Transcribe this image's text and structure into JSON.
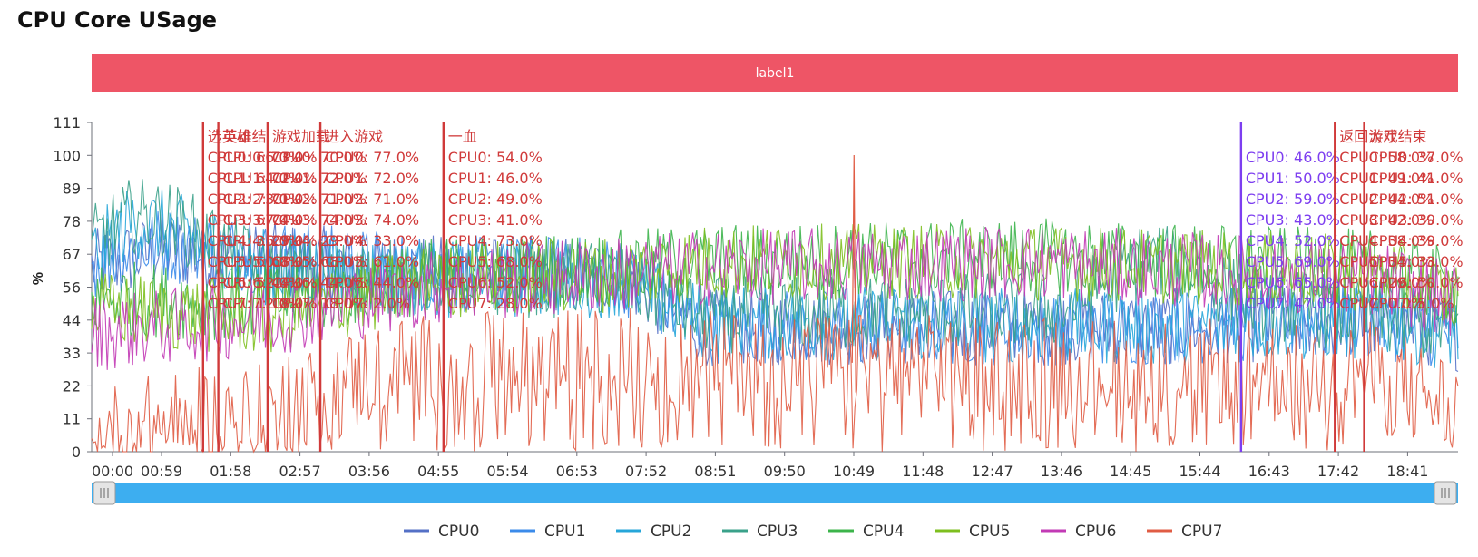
{
  "page": {
    "title": "CPU Core USage"
  },
  "banner": {
    "label": "label1",
    "color": "#ee5566"
  },
  "chart_data": {
    "type": "line",
    "title": "CPU Core USage",
    "ylabel": "%",
    "xlabel": "",
    "ylim": [
      0,
      111
    ],
    "yticks": [
      "0",
      "11",
      "22",
      "33",
      "44",
      "56",
      "67",
      "78",
      "89",
      "100",
      "111"
    ],
    "xticks": [
      "00:00",
      "00:59",
      "01:58",
      "02:57",
      "03:56",
      "04:55",
      "05:54",
      "06:53",
      "07:52",
      "08:51",
      "09:50",
      "10:49",
      "11:48",
      "12:47",
      "13:46",
      "14:45",
      "15:44",
      "16:43",
      "17:42",
      "18:41"
    ],
    "x_range_seconds": [
      0,
      1165
    ],
    "grid": false,
    "legend_position": "bottom",
    "series": [
      {
        "name": "CPU0",
        "color": "#5470c6",
        "profile": [
          [
            0,
            62
          ],
          [
            60,
            68
          ],
          [
            150,
            65
          ],
          [
            300,
            60
          ],
          [
            450,
            60
          ],
          [
            520,
            42
          ],
          [
            900,
            42
          ],
          [
            1100,
            44
          ],
          [
            1165,
            40
          ]
        ]
      },
      {
        "name": "CPU1",
        "color": "#3b8bea",
        "profile": [
          [
            0,
            64
          ],
          [
            60,
            70
          ],
          [
            150,
            66
          ],
          [
            300,
            60
          ],
          [
            450,
            60
          ],
          [
            520,
            42
          ],
          [
            900,
            42
          ],
          [
            1100,
            44
          ],
          [
            1165,
            40
          ]
        ]
      },
      {
        "name": "CPU2",
        "color": "#26a6d9",
        "profile": [
          [
            0,
            66
          ],
          [
            35,
            78
          ],
          [
            70,
            75
          ],
          [
            150,
            62
          ],
          [
            300,
            58
          ],
          [
            450,
            58
          ],
          [
            520,
            44
          ],
          [
            900,
            42
          ],
          [
            1100,
            44
          ],
          [
            1165,
            40
          ]
        ]
      },
      {
        "name": "CPU3",
        "color": "#3aa18a",
        "profile": [
          [
            0,
            70
          ],
          [
            35,
            80
          ],
          [
            70,
            78
          ],
          [
            150,
            60
          ],
          [
            300,
            58
          ],
          [
            450,
            58
          ],
          [
            520,
            46
          ],
          [
            830,
            48
          ],
          [
            900,
            66
          ],
          [
            1000,
            50
          ],
          [
            1165,
            42
          ]
        ]
      },
      {
        "name": "CPU4",
        "color": "#3cb44b",
        "profile": [
          [
            0,
            52
          ],
          [
            150,
            50
          ],
          [
            300,
            60
          ],
          [
            450,
            62
          ],
          [
            520,
            64
          ],
          [
            800,
            66
          ],
          [
            1100,
            62
          ],
          [
            1165,
            55
          ]
        ]
      },
      {
        "name": "CPU5",
        "color": "#7ebf1f",
        "profile": [
          [
            0,
            48
          ],
          [
            150,
            45
          ],
          [
            300,
            58
          ],
          [
            450,
            60
          ],
          [
            520,
            64
          ],
          [
            800,
            64
          ],
          [
            1100,
            60
          ],
          [
            1165,
            52
          ]
        ]
      },
      {
        "name": "CPU6",
        "color": "#c23ab5",
        "profile": [
          [
            0,
            40
          ],
          [
            150,
            45
          ],
          [
            300,
            56
          ],
          [
            450,
            60
          ],
          [
            520,
            62
          ],
          [
            800,
            64
          ],
          [
            1100,
            58
          ],
          [
            1165,
            50
          ]
        ]
      },
      {
        "name": "CPU7",
        "color": "#e05c44",
        "profile": [
          [
            0,
            4
          ],
          [
            70,
            10
          ],
          [
            150,
            12
          ],
          [
            250,
            28
          ],
          [
            400,
            30
          ],
          [
            450,
            32
          ],
          [
            520,
            30
          ],
          [
            800,
            28
          ],
          [
            1100,
            26
          ],
          [
            1165,
            14
          ]
        ]
      }
    ],
    "annotations": [
      {
        "x_sec": 95,
        "color": "#d03a3a",
        "title": "选英雄",
        "values": [
          "CPU0: 66.0%",
          "CPU1: 64.0%",
          "CPU2: 73.0%",
          "CPU3: 67.0%",
          "CPU4: 35.0%",
          "CPU5: 60.0%",
          "CPU6: 52.0%",
          "CPU7: 12.0%"
        ]
      },
      {
        "x_sec": 108,
        "color": "#d03a3a",
        "title": "英雄结",
        "values": [
          "CPU0: 73.0%",
          "CPU1: 72.0%",
          "CPU2: 71.0%",
          "CPU3: 74.0%",
          "CPU4: 29.0%",
          "CPU5: 68.0%",
          "CPU6: 44.0%",
          "CPU7: 18.0%"
        ]
      },
      {
        "x_sec": 150,
        "color": "#d03a3a",
        "title": "游戏加载",
        "values": [
          "CPU0: 70.0%",
          "CPU1: 72.0%",
          "CPU2: 71.0%",
          "CPU3: 74.0%",
          "CPU4: 29.0%",
          "CPU5: 68.0%",
          "CPU6: 44.0%",
          "CPU7: 18.0%"
        ]
      },
      {
        "x_sec": 195,
        "color": "#d03a3a",
        "title": "进入游戏",
        "values": [
          "CPU0: 77.0%",
          "CPU1: 72.0%",
          "CPU2: 71.0%",
          "CPU3: 74.0%",
          "CPU4: 33.0%",
          "CPU5: 61.0%",
          "CPU6: 44.0%",
          "CPU7: 2.0%"
        ]
      },
      {
        "x_sec": 300,
        "color": "#d03a3a",
        "title": "一血",
        "values": [
          "CPU0: 54.0%",
          "CPU1: 46.0%",
          "CPU2: 49.0%",
          "CPU3: 41.0%",
          "CPU4: 73.0%",
          "CPU5: 68.0%",
          "CPU6: 52.0%",
          "CPU7: 28.0%"
        ]
      },
      {
        "x_sec": 980,
        "color": "#7d3ef0",
        "title": "",
        "values": [
          "CPU0: 46.0%",
          "CPU1: 50.0%",
          "CPU2: 59.0%",
          "CPU3: 43.0%",
          "CPU4: 52.0%",
          "CPU5: 69.0%",
          "CPU6: 65.0%",
          "CPU7: 47.0%"
        ]
      },
      {
        "x_sec": 1060,
        "color": "#d03a3a",
        "title": "返回大厅",
        "values": [
          "CPU0: 58.0%",
          "CPU1: 49.0%",
          "CPU2: 44.0%",
          "CPU3: 42.0%",
          "CPU4: 38.0%",
          "CPU5: 34.0%",
          "CPU6: 29.0%",
          "CPU7: 0.0%"
        ]
      },
      {
        "x_sec": 1085,
        "color": "#d03a3a",
        "title": "游戏结束",
        "values": [
          "CPU0: 37.0%",
          "CPU1: 41.0%",
          "CPU2: 51.0%",
          "CPU3: 39.0%",
          "CPU4: 39.0%",
          "CPU5: 33.0%",
          "CPU6: 50.0%",
          "CPU7: 5.0%"
        ]
      }
    ],
    "spikes": [
      {
        "x_sec": 650,
        "y": 100,
        "series": "CPU7"
      }
    ]
  },
  "slider": {
    "color": "#3daef0"
  }
}
